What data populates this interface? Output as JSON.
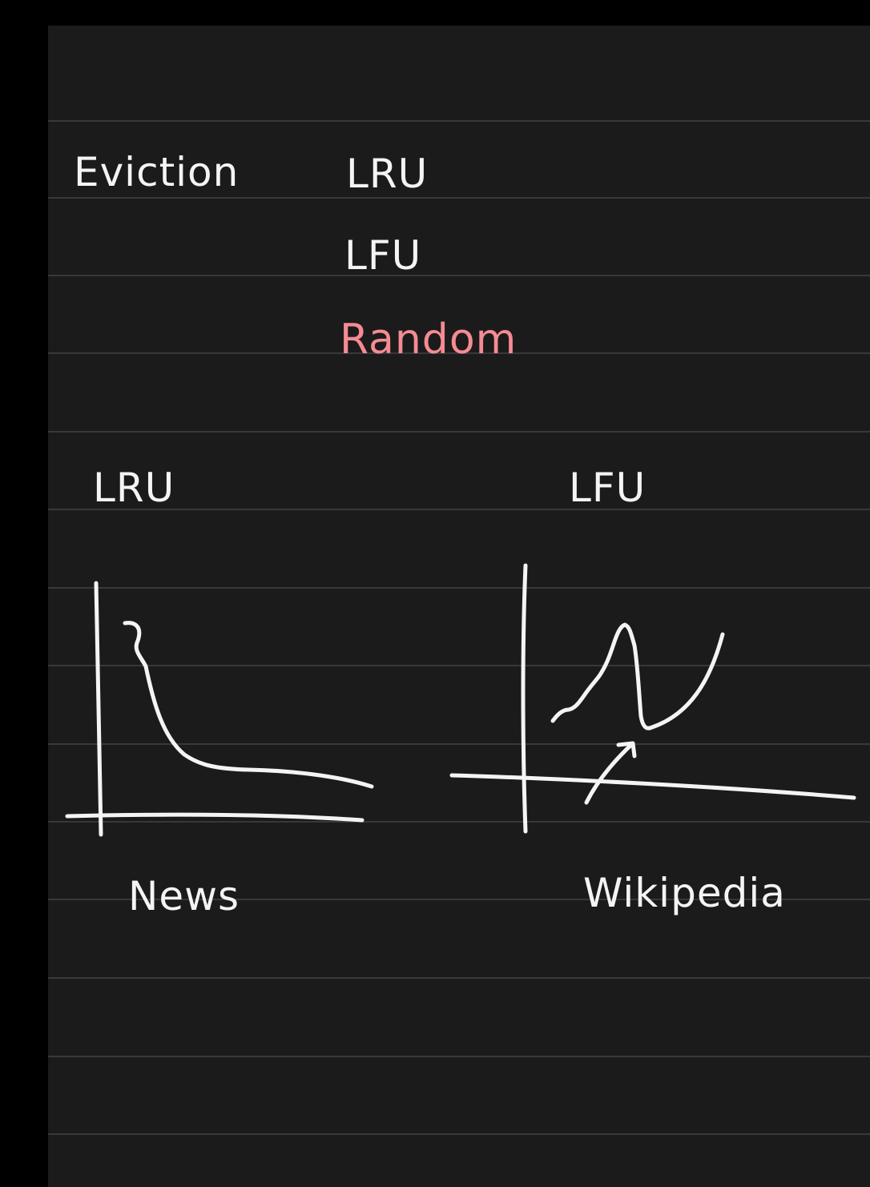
{
  "heading": {
    "label": "Eviction",
    "options": [
      "LRU",
      "LFU",
      "Random"
    ],
    "highlight_color": "#f58b93"
  },
  "sketches": [
    {
      "title": "LRU",
      "caption": "News"
    },
    {
      "title": "LFU",
      "caption": "Wikipedia"
    }
  ],
  "colors": {
    "ink": "#f4f4f4",
    "page": "#1c1b1c",
    "rule": "#38373a",
    "margin": "#000000"
  }
}
